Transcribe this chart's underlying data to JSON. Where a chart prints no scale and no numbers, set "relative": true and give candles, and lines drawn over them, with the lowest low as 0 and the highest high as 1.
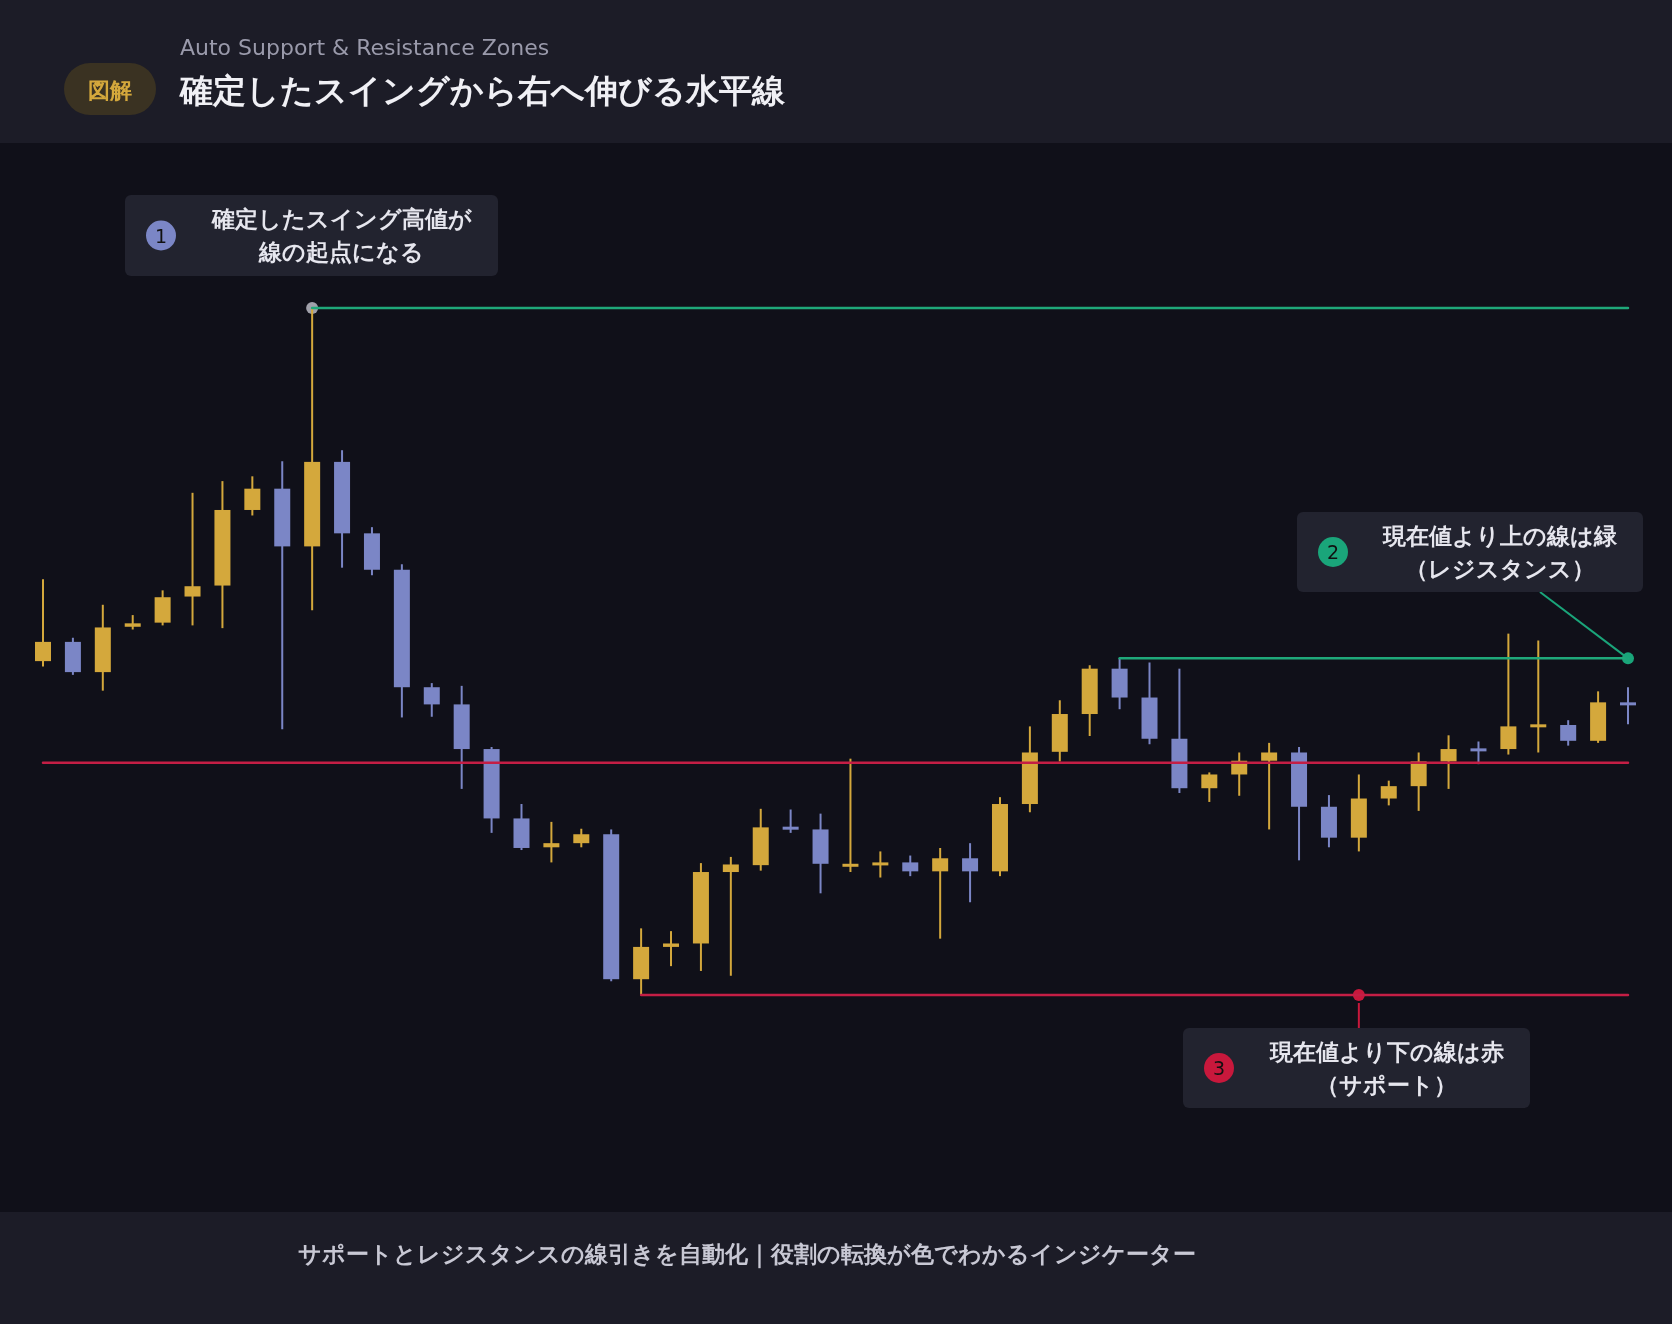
{
  "chart_data": {
    "type": "candlestick",
    "title": "確定したスイングから右へ伸びる水平線",
    "subtitle": "Auto Support & Resistance Zones",
    "relative": true,
    "categories": [
      null,
      null,
      null,
      null,
      null,
      null,
      null,
      null,
      null,
      null,
      null,
      null,
      null,
      null,
      null,
      null,
      null,
      null,
      null,
      null,
      null,
      null,
      null,
      null,
      null,
      null,
      null,
      null,
      null,
      null,
      null,
      null,
      null,
      null,
      null,
      null,
      null,
      null,
      null,
      null,
      null,
      null,
      null,
      null,
      null,
      null,
      null,
      null,
      null,
      null,
      null,
      null,
      null,
      null
    ],
    "ohlc": [
      [
        0.486,
        0.605,
        0.478,
        0.514
      ],
      [
        0.514,
        0.52,
        0.466,
        0.47
      ],
      [
        0.47,
        0.568,
        0.443,
        0.535
      ],
      [
        0.536,
        0.553,
        0.532,
        0.541
      ],
      [
        0.542,
        0.589,
        0.538,
        0.579
      ],
      [
        0.58,
        0.731,
        0.538,
        0.595
      ],
      [
        0.596,
        0.748,
        0.534,
        0.706
      ],
      [
        0.706,
        0.755,
        0.698,
        0.737
      ],
      [
        0.737,
        0.777,
        0.387,
        0.653
      ],
      [
        0.653,
        1.0,
        0.56,
        0.776
      ],
      [
        0.776,
        0.793,
        0.622,
        0.672
      ],
      [
        0.672,
        0.681,
        0.611,
        0.619
      ],
      [
        0.619,
        0.627,
        0.404,
        0.448
      ],
      [
        0.448,
        0.454,
        0.405,
        0.423
      ],
      [
        0.423,
        0.45,
        0.3,
        0.358
      ],
      [
        0.358,
        0.361,
        0.236,
        0.257
      ],
      [
        0.257,
        0.278,
        0.211,
        0.214
      ],
      [
        0.215,
        0.252,
        0.193,
        0.221
      ],
      [
        0.221,
        0.242,
        0.215,
        0.234
      ],
      [
        0.234,
        0.241,
        0.02,
        0.023
      ],
      [
        0.023,
        0.097,
        0.0,
        0.07
      ],
      [
        0.07,
        0.093,
        0.042,
        0.075
      ],
      [
        0.075,
        0.192,
        0.035,
        0.179
      ],
      [
        0.179,
        0.201,
        0.028,
        0.19
      ],
      [
        0.189,
        0.271,
        0.181,
        0.244
      ],
      [
        0.245,
        0.27,
        0.236,
        0.241
      ],
      [
        0.241,
        0.264,
        0.148,
        0.191
      ],
      [
        0.187,
        0.344,
        0.179,
        0.191
      ],
      [
        0.189,
        0.209,
        0.171,
        0.193
      ],
      [
        0.193,
        0.203,
        0.173,
        0.18
      ],
      [
        0.18,
        0.214,
        0.082,
        0.199
      ],
      [
        0.199,
        0.221,
        0.135,
        0.18
      ],
      [
        0.18,
        0.288,
        0.173,
        0.278
      ],
      [
        0.278,
        0.391,
        0.266,
        0.353
      ],
      [
        0.354,
        0.429,
        0.34,
        0.409
      ],
      [
        0.409,
        0.48,
        0.377,
        0.475
      ],
      [
        0.475,
        0.49,
        0.416,
        0.433
      ],
      [
        0.433,
        0.484,
        0.365,
        0.373
      ],
      [
        0.373,
        0.475,
        0.294,
        0.301
      ],
      [
        0.301,
        0.324,
        0.281,
        0.321
      ],
      [
        0.321,
        0.353,
        0.29,
        0.341
      ],
      [
        0.341,
        0.367,
        0.241,
        0.353
      ],
      [
        0.353,
        0.361,
        0.196,
        0.274
      ],
      [
        0.274,
        0.291,
        0.215,
        0.229
      ],
      [
        0.229,
        0.321,
        0.209,
        0.286
      ],
      [
        0.286,
        0.312,
        0.276,
        0.304
      ],
      [
        0.304,
        0.353,
        0.268,
        0.34
      ],
      [
        0.34,
        0.378,
        0.3,
        0.358
      ],
      [
        0.359,
        0.369,
        0.336,
        0.357
      ],
      [
        0.358,
        0.526,
        0.35,
        0.391
      ],
      [
        0.39,
        0.516,
        0.353,
        0.394
      ],
      [
        0.393,
        0.4,
        0.363,
        0.37
      ],
      [
        0.37,
        0.442,
        0.367,
        0.426
      ],
      [
        0.426,
        0.448,
        0.394,
        0.423
      ]
    ],
    "colors": [
      "#d4a83c",
      "#7b86c6",
      "#d4a83c",
      "#d4a83c",
      "#d4a83c",
      "#d4a83c",
      "#d4a83c",
      "#d4a83c",
      "#7b86c6",
      "#d4a83c",
      "#7b86c6",
      "#7b86c6",
      "#7b86c6",
      "#7b86c6",
      "#7b86c6",
      "#7b86c6",
      "#7b86c6",
      "#d4a83c",
      "#d4a83c",
      "#7b86c6",
      "#d4a83c",
      "#d4a83c",
      "#d4a83c",
      "#d4a83c",
      "#d4a83c",
      "#7b86c6",
      "#7b86c6",
      "#d4a83c",
      "#d4a83c",
      "#7b86c6",
      "#d4a83c",
      "#7b86c6",
      "#d4a83c",
      "#d4a83c",
      "#d4a83c",
      "#d4a83c",
      "#7b86c6",
      "#7b86c6",
      "#7b86c6",
      "#d4a83c",
      "#d4a83c",
      "#d4a83c",
      "#7b86c6",
      "#7b86c6",
      "#d4a83c",
      "#d4a83c",
      "#d4a83c",
      "#d4a83c",
      "#7b86c6",
      "#d4a83c",
      "#d4a83c",
      "#7b86c6",
      "#d4a83c",
      "#7b86c6"
    ],
    "series": [
      {
        "type": "line",
        "color": "#1fa87a",
        "values": [
          null,
          null,
          null,
          null,
          null,
          null,
          null,
          null,
          null,
          1.0,
          1.0,
          1.0,
          1.0,
          1.0,
          1.0,
          1.0,
          1.0,
          1.0,
          1.0,
          1.0,
          1.0,
          1.0,
          1.0,
          1.0,
          1.0,
          1.0,
          1.0,
          1.0,
          1.0,
          1.0,
          1.0,
          1.0,
          1.0,
          1.0,
          1.0,
          1.0,
          1.0,
          1.0,
          1.0,
          1.0,
          1.0,
          1.0,
          1.0,
          1.0,
          1.0,
          1.0,
          1.0,
          1.0,
          1.0,
          1.0,
          1.0,
          1.0,
          1.0,
          1.0
        ]
      },
      {
        "type": "line",
        "color": "#1fa87a",
        "values": [
          null,
          null,
          null,
          null,
          null,
          null,
          null,
          null,
          null,
          null,
          null,
          null,
          null,
          null,
          null,
          null,
          null,
          null,
          null,
          null,
          null,
          null,
          null,
          null,
          null,
          null,
          null,
          null,
          null,
          null,
          null,
          null,
          null,
          null,
          null,
          null,
          0.49,
          0.49,
          0.49,
          0.49,
          0.49,
          0.49,
          0.49,
          0.49,
          0.49,
          0.49,
          0.49,
          0.49,
          0.49,
          0.49,
          0.49,
          0.49,
          0.49,
          0.49
        ]
      },
      {
        "type": "line",
        "color": "#c41e45",
        "values": [
          0.338,
          0.338,
          0.338,
          0.338,
          0.338,
          0.338,
          0.338,
          0.338,
          0.338,
          0.338,
          0.338,
          0.338,
          0.338,
          0.338,
          0.338,
          0.338,
          0.338,
          0.338,
          0.338,
          0.338,
          0.338,
          0.338,
          0.338,
          0.338,
          0.338,
          0.338,
          0.338,
          0.338,
          0.338,
          0.338,
          0.338,
          0.338,
          0.338,
          0.338,
          0.338,
          0.338,
          0.338,
          0.338,
          0.338,
          0.338,
          0.338,
          0.338,
          0.338,
          0.338,
          0.338,
          0.338,
          0.338,
          0.338,
          0.338,
          0.338,
          0.338,
          0.338,
          0.338,
          0.338
        ]
      },
      {
        "type": "line",
        "color": "#c41e45",
        "values": [
          null,
          null,
          null,
          null,
          null,
          null,
          null,
          null,
          null,
          null,
          null,
          null,
          null,
          null,
          null,
          null,
          null,
          null,
          null,
          null,
          0.0,
          0.0,
          0.0,
          0.0,
          0.0,
          0.0,
          0.0,
          0.0,
          0.0,
          0.0,
          0.0,
          0.0,
          0.0,
          0.0,
          0.0,
          0.0,
          0.0,
          0.0,
          0.0,
          0.0,
          0.0,
          0.0,
          0.0,
          0.0,
          0.0,
          0.0,
          0.0,
          0.0,
          0.0,
          0.0,
          0.0,
          0.0,
          0.0,
          0.0
        ]
      }
    ],
    "annotations": [
      "図解",
      "1",
      {
        "text": "確定したスイング高値が線の起点になる",
        "y": 1.0
      },
      "2",
      "現在値より上の線は緑（レジスタンス）",
      "3",
      {
        "text": "現在値より下の線は赤（サポート）",
        "y": 0.0
      },
      "サポートとレジスタンスの線引きを自動化｜役割の転換が色でわかるインジケーター"
    ]
  }
}
